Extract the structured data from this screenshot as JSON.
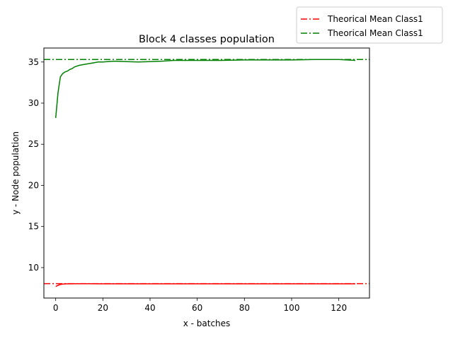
{
  "chart_data": {
    "type": "line",
    "title": "Block 4 classes population",
    "xlabel": "x - batches",
    "ylabel": "y - Node population",
    "xlim": [
      -5,
      133
    ],
    "ylim": [
      6.3,
      36.7
    ],
    "xticks": [
      0,
      20,
      40,
      60,
      80,
      100,
      120
    ],
    "yticks": [
      10,
      15,
      20,
      25,
      30,
      35
    ],
    "grid": false,
    "legend_placement": "outside-top-right",
    "hlines": [
      {
        "name": "Theorical Mean Class1",
        "y": 8.05,
        "color": "#ff0000",
        "style": "dashdot"
      },
      {
        "name": "Theorical Mean Class1",
        "y": 35.3,
        "color": "#008000",
        "style": "dashdot"
      }
    ],
    "series": [
      {
        "color": "#ff0000",
        "x": [
          0,
          1,
          2,
          3,
          4,
          5,
          6,
          8,
          10,
          15,
          20,
          30,
          40,
          60,
          80,
          100,
          120,
          127
        ],
        "y": [
          7.7,
          7.85,
          7.95,
          8.0,
          8.02,
          8.03,
          8.03,
          8.04,
          8.04,
          8.04,
          8.03,
          8.03,
          8.03,
          8.03,
          8.03,
          8.03,
          8.03,
          8.03
        ]
      },
      {
        "color": "#008000",
        "x": [
          0,
          1,
          2,
          3,
          4,
          5,
          6,
          7,
          8,
          9,
          10,
          12,
          14,
          16,
          18,
          20,
          22,
          25,
          30,
          35,
          40,
          45,
          50,
          55,
          60,
          65,
          70,
          80,
          90,
          100,
          110,
          120,
          127
        ],
        "y": [
          28.2,
          31.3,
          33.2,
          33.6,
          33.8,
          33.9,
          34.1,
          34.2,
          34.4,
          34.5,
          34.6,
          34.7,
          34.8,
          34.9,
          35.0,
          35.0,
          35.05,
          35.1,
          35.05,
          35.0,
          35.05,
          35.1,
          35.2,
          35.2,
          35.2,
          35.2,
          35.2,
          35.25,
          35.25,
          35.25,
          35.3,
          35.3,
          35.2
        ]
      }
    ]
  }
}
